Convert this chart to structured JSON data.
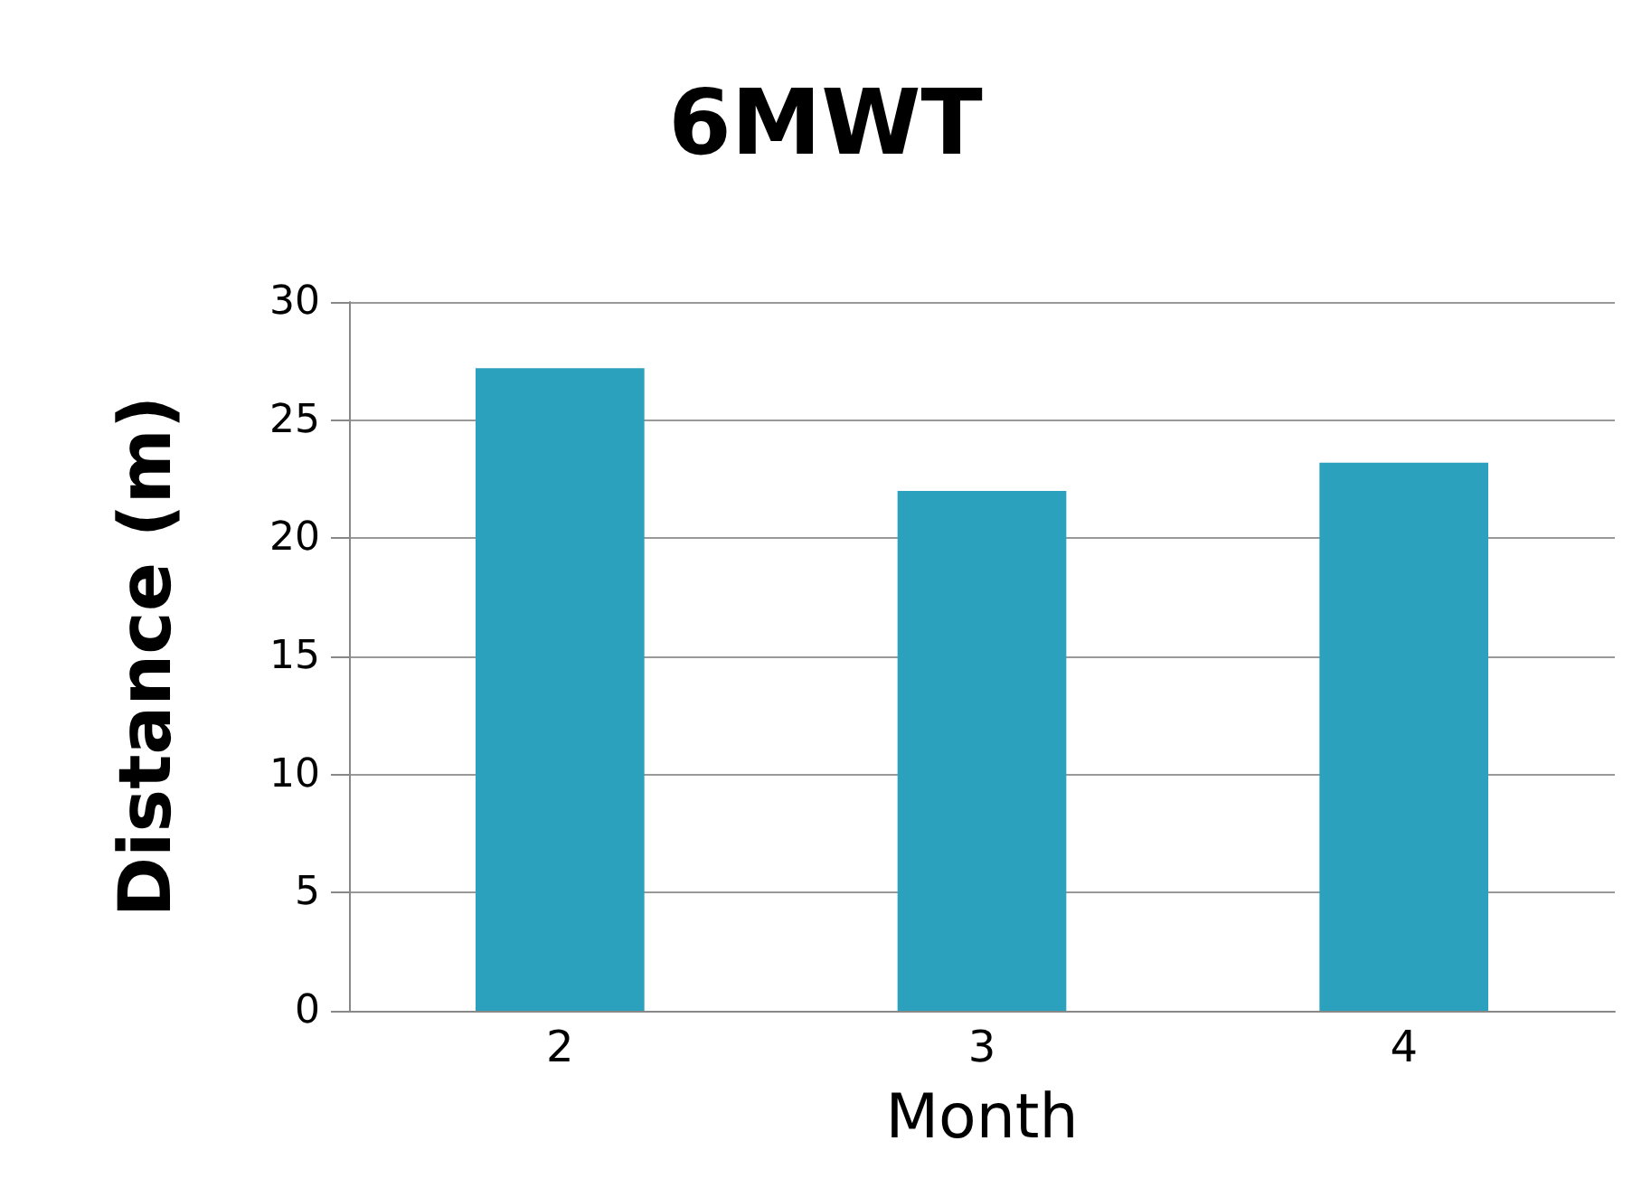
{
  "chart_data": {
    "type": "bar",
    "title": "6MWT",
    "xlabel": "Month",
    "ylabel": "Distance (m)",
    "categories": [
      "2",
      "3",
      "4"
    ],
    "values": [
      27.2,
      22.0,
      23.2
    ],
    "color": "#2ca1be",
    "ylim": [
      0,
      30
    ],
    "yticks": [
      0,
      5,
      10,
      15,
      20,
      25,
      30
    ],
    "grid": "y"
  }
}
